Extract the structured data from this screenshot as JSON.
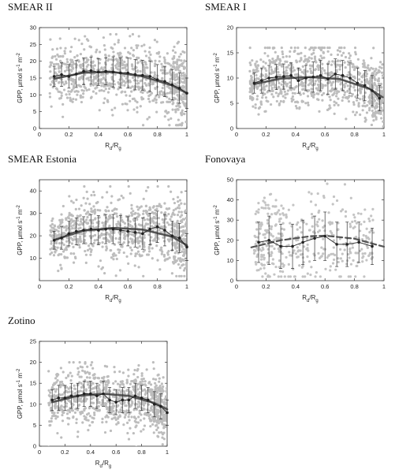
{
  "figure": {
    "panels": [
      {
        "id": "smear-ii",
        "title": "SMEAR II",
        "ylabel": "GPP, μmol s⁻¹ m⁻²",
        "xlabel": "Rd/Rg"
      },
      {
        "id": "smear-i",
        "title": "SMEAR I",
        "ylabel": "GPP, μmol s⁻¹ m⁻²",
        "xlabel": "Rd/Rg"
      },
      {
        "id": "smear-estonia",
        "title": "SMEAR Estonia",
        "ylabel": "GPP, μmol s⁻¹ m⁻²",
        "xlabel": "Rd/Rg"
      },
      {
        "id": "fonovaya",
        "title": "Fonovaya",
        "ylabel": "GPP, μmol s⁻¹ m⁻²",
        "xlabel": "Rd/Rg"
      },
      {
        "id": "zotino",
        "title": "Zotino",
        "ylabel": "GPP, μmol s⁻¹ m⁻²",
        "xlabel": "Rd/Rg"
      }
    ]
  },
  "chart_data": [
    {
      "type": "scatter",
      "title": "SMEAR II",
      "xlabel": "Rd/Rg",
      "ylabel": "GPP, μmol s⁻¹ m⁻²",
      "xlim": [
        0,
        1
      ],
      "ylim": [
        0,
        30
      ],
      "xticks": [
        0,
        0.2,
        0.4,
        0.6,
        0.8,
        1
      ],
      "yticks": [
        0,
        5,
        10,
        15,
        20,
        25,
        30
      ],
      "scatter_colour": "#bdbdbd",
      "scatter_range": [
        4,
        28
      ],
      "binned_means": {
        "x": [
          0.1,
          0.15,
          0.2,
          0.25,
          0.3,
          0.35,
          0.4,
          0.45,
          0.5,
          0.55,
          0.6,
          0.65,
          0.7,
          0.75,
          0.8,
          0.85,
          0.9,
          0.95,
          1.0
        ],
        "y": [
          15.5,
          16.0,
          15.5,
          16.2,
          17.0,
          17.2,
          16.8,
          17.0,
          16.8,
          16.5,
          16.5,
          16.0,
          15.8,
          15.5,
          14.5,
          14.0,
          13.0,
          12.0,
          10.5
        ],
        "sd": [
          3.0,
          3.5,
          3.5,
          4.0,
          4.0,
          4.0,
          4.0,
          4.0,
          4.5,
          4.5,
          4.5,
          4.5,
          4.5,
          4.5,
          4.5,
          4.5,
          4.5,
          4.5,
          4.5
        ]
      },
      "fit": {
        "x": [
          0.1,
          0.3,
          0.5,
          0.7,
          0.9,
          1.0
        ],
        "y": [
          14.8,
          16.6,
          16.8,
          15.5,
          12.8,
          10.5
        ],
        "style": "solid"
      }
    },
    {
      "type": "scatter",
      "title": "SMEAR I",
      "xlabel": "Rd/Rg",
      "ylabel": "GPP, μmol s⁻¹ m⁻²",
      "xlim": [
        0,
        1
      ],
      "ylim": [
        0,
        20
      ],
      "xticks": [
        0,
        0.2,
        0.4,
        0.6,
        0.8,
        1
      ],
      "yticks": [
        0,
        5,
        10,
        15,
        20
      ],
      "scatter_colour": "#bdbdbd",
      "scatter_range": [
        2,
        16
      ],
      "binned_means": {
        "x": [
          0.12,
          0.17,
          0.22,
          0.27,
          0.32,
          0.37,
          0.42,
          0.47,
          0.52,
          0.57,
          0.62,
          0.67,
          0.72,
          0.77,
          0.82,
          0.87,
          0.92,
          0.97
        ],
        "y": [
          9.0,
          9.5,
          10.0,
          10.2,
          10.3,
          10.5,
          9.5,
          10.0,
          10.2,
          10.5,
          9.8,
          10.8,
          10.5,
          10.0,
          9.0,
          8.5,
          7.5,
          6.0
        ],
        "sd": [
          2.0,
          2.5,
          2.5,
          2.5,
          2.5,
          2.5,
          2.5,
          2.5,
          3.0,
          3.0,
          3.0,
          3.0,
          3.0,
          3.0,
          3.0,
          3.0,
          3.0,
          2.5
        ]
      },
      "fit": {
        "x": [
          0.12,
          0.3,
          0.5,
          0.7,
          0.9,
          0.99
        ],
        "y": [
          8.8,
          9.9,
          10.2,
          9.8,
          7.9,
          6.2
        ],
        "style": "solid"
      }
    },
    {
      "type": "scatter",
      "title": "SMEAR Estonia",
      "xlabel": "Rd/Rg",
      "ylabel": "GPP, μmol s⁻¹ m⁻²",
      "xlim": [
        0,
        1
      ],
      "ylim": [
        0,
        45
      ],
      "xticks": [
        0,
        0.2,
        0.4,
        0.6,
        0.8,
        1
      ],
      "yticks": [
        10,
        20,
        30,
        40
      ],
      "scatter_colour": "#bdbdbd",
      "scatter_range": [
        5,
        42
      ],
      "binned_means": {
        "x": [
          0.1,
          0.15,
          0.2,
          0.25,
          0.3,
          0.35,
          0.4,
          0.45,
          0.5,
          0.55,
          0.6,
          0.65,
          0.7,
          0.75,
          0.8,
          0.85,
          0.9,
          0.95,
          1.0
        ],
        "y": [
          18.0,
          19.0,
          21.0,
          22.0,
          22.5,
          23.0,
          22.5,
          23.0,
          23.0,
          22.5,
          22.0,
          21.5,
          21.0,
          23.0,
          24.0,
          22.5,
          20.0,
          19.0,
          15.0
        ],
        "sd": [
          4.0,
          5.0,
          5.5,
          6.0,
          6.0,
          6.5,
          6.5,
          6.5,
          6.5,
          6.5,
          6.5,
          6.5,
          7.0,
          7.0,
          7.0,
          7.0,
          6.5,
          6.5,
          6.0
        ]
      },
      "fit": {
        "x": [
          0.1,
          0.3,
          0.5,
          0.7,
          0.9,
          1.0
        ],
        "y": [
          18.2,
          22.3,
          23.5,
          22.8,
          19.6,
          15.8
        ],
        "style": "solid"
      }
    },
    {
      "type": "scatter",
      "title": "Fonovaya",
      "xlabel": "Rd/Rg",
      "ylabel": "GPP, μmol s⁻¹ m⁻²",
      "xlim": [
        0,
        1
      ],
      "ylim": [
        0,
        50
      ],
      "xticks": [
        0,
        0.2,
        0.4,
        0.6,
        0.8,
        1
      ],
      "yticks": [
        0,
        10,
        20,
        30,
        40,
        50
      ],
      "scatter_colour": "#c4c4c4",
      "scatter_range": [
        5,
        48
      ],
      "binned_means": {
        "x": [
          0.15,
          0.22,
          0.3,
          0.38,
          0.45,
          0.53,
          0.6,
          0.68,
          0.75,
          0.83,
          0.92
        ],
        "y": [
          19.0,
          20.0,
          17.0,
          17.0,
          19.0,
          21.0,
          22.0,
          18.0,
          18.0,
          19.0,
          17.0
        ],
        "sd": [
          10.0,
          12.0,
          11.0,
          11.0,
          11.0,
          11.0,
          12.0,
          11.0,
          11.0,
          10.0,
          9.0
        ]
      },
      "fit": {
        "x": [
          0.1,
          0.3,
          0.5,
          0.6,
          0.8,
          1.0
        ],
        "y": [
          16.5,
          20.0,
          22.0,
          22.3,
          20.8,
          16.8
        ],
        "style": "dashed"
      }
    },
    {
      "type": "scatter",
      "title": "Zotino",
      "xlabel": "Rd/Rg",
      "ylabel": "GPP, μmol s⁻¹ m⁻²",
      "xlim": [
        0,
        1
      ],
      "ylim": [
        0,
        25
      ],
      "xticks": [
        0,
        0.2,
        0.4,
        0.6,
        0.8,
        1
      ],
      "yticks": [
        0,
        5,
        10,
        15,
        20,
        25
      ],
      "scatter_colour": "#bdbdbd",
      "scatter_range": [
        2,
        20
      ],
      "binned_means": {
        "x": [
          0.1,
          0.15,
          0.2,
          0.25,
          0.3,
          0.35,
          0.4,
          0.45,
          0.5,
          0.55,
          0.6,
          0.65,
          0.7,
          0.75,
          0.8,
          0.85,
          0.9,
          0.95,
          1.0
        ],
        "y": [
          11.0,
          11.5,
          11.5,
          12.0,
          12.0,
          12.5,
          12.5,
          12.0,
          12.5,
          11.0,
          10.5,
          11.0,
          11.0,
          12.0,
          11.5,
          11.0,
          10.0,
          9.5,
          8.0
        ],
        "sd": [
          2.5,
          3.0,
          3.0,
          3.0,
          3.0,
          3.0,
          3.0,
          3.0,
          3.0,
          3.0,
          3.0,
          3.0,
          3.0,
          3.0,
          3.0,
          3.0,
          3.0,
          3.0,
          3.0
        ]
      },
      "fit": {
        "x": [
          0.1,
          0.3,
          0.5,
          0.7,
          0.9,
          1.0
        ],
        "y": [
          10.5,
          12.0,
          12.5,
          12.0,
          10.3,
          8.8
        ],
        "style": "solid"
      }
    }
  ]
}
